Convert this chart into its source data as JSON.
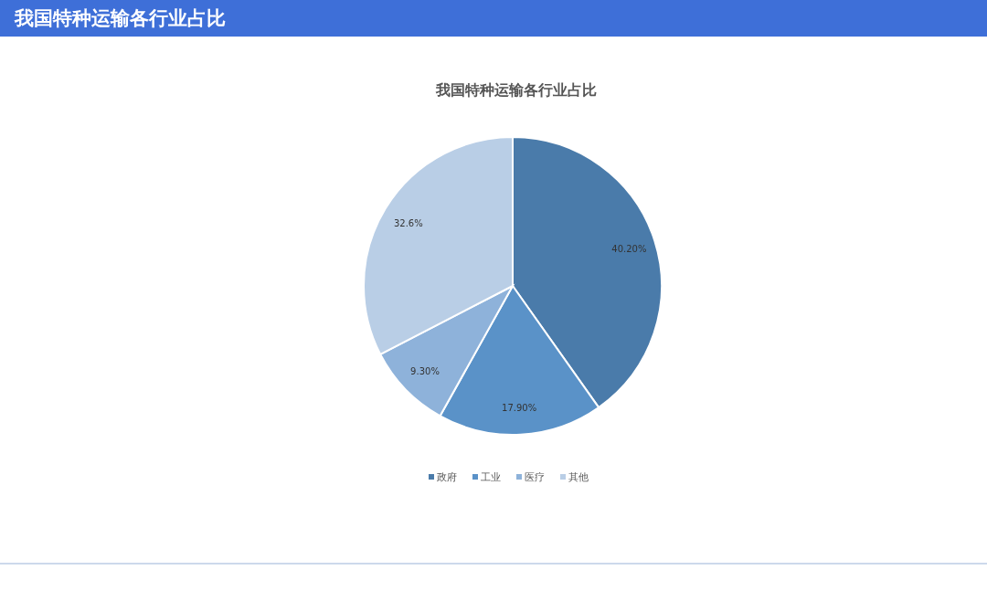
{
  "chart_data": {
    "type": "pie",
    "title": "我国特种运输各行业占比",
    "subtitle": "我国特种运输各行业占比",
    "categories": [
      "政府",
      "工业",
      "医疗",
      "其他"
    ],
    "values": [
      40.2,
      17.9,
      9.3,
      32.6
    ],
    "value_labels": [
      "40.20%",
      "17.90%",
      "9.30%",
      "32.6%"
    ],
    "colors": [
      "#4a7baa",
      "#5a92c8",
      "#8eb2da",
      "#b9cee6"
    ],
    "legend": "bottom"
  }
}
